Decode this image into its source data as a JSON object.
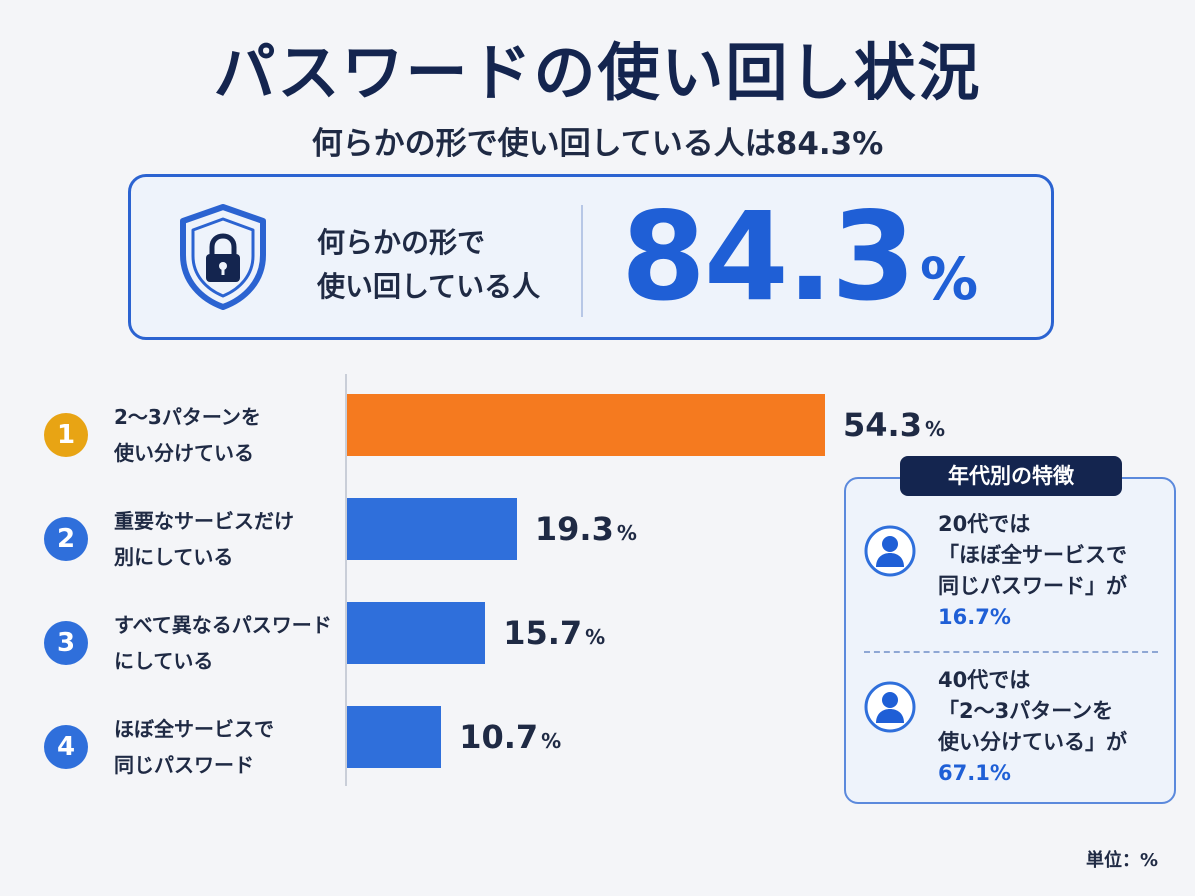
{
  "title": "パスワードの使い回し状況",
  "subtitle": "何らかの形で使い回している人は84.3%",
  "summary": {
    "label_line1": "何らかの形で",
    "label_line2": "使い回している人",
    "value": "84.3",
    "unit": "%",
    "icon": "shield-lock-icon"
  },
  "chart_data": {
    "type": "bar",
    "orientation": "horizontal",
    "categories": [
      "2～3パターンを使い分けている",
      "重要なサービスだけ別にしている",
      "すべて異なるパスワードにしている",
      "ほぼ全サービスで同じパスワード"
    ],
    "values": [
      54.3,
      19.3,
      15.7,
      10.7
    ],
    "items": [
      {
        "rank": "1",
        "line1": "2～3パターンを",
        "line2": "使い分けている",
        "value": 54.3,
        "value_text": "54.3",
        "color": "#f57a1f",
        "badge_color": "#e8a414"
      },
      {
        "rank": "2",
        "line1": "重要なサービスだけ",
        "line2": "別にしている",
        "value": 19.3,
        "value_text": "19.3",
        "color": "#2f6fdb",
        "badge_color": "#2f6fdb"
      },
      {
        "rank": "3",
        "line1": "すべて異なるパスワード",
        "line2": "にしている",
        "value": 15.7,
        "value_text": "15.7",
        "color": "#2f6fdb",
        "badge_color": "#2f6fdb"
      },
      {
        "rank": "4",
        "line1": "ほぼ全サービスで",
        "line2": "同じパスワード",
        "value": 10.7,
        "value_text": "10.7",
        "color": "#2f6fdb",
        "badge_color": "#2f6fdb"
      }
    ],
    "value_unit": "%",
    "xlim": [
      0,
      75
    ]
  },
  "side": {
    "header": "年代別の特徴",
    "items": [
      {
        "line1": "20代では",
        "line2": "「ほぼ全サービスで",
        "line3": "同じパスワード」が",
        "stat": "16.7%",
        "icon": "person-icon"
      },
      {
        "line1": "40代では",
        "line2": "「2～3パターンを",
        "line3": "使い分けている」が",
        "stat": "67.1%",
        "icon": "person-icon"
      }
    ]
  },
  "unit_note": "単位：%",
  "colors": {
    "navy": "#14254f",
    "accent_blue": "#1f5fd6",
    "bar_blue": "#2f6fdb",
    "bar_orange": "#f57a1f",
    "badge_gold": "#e8a414"
  }
}
